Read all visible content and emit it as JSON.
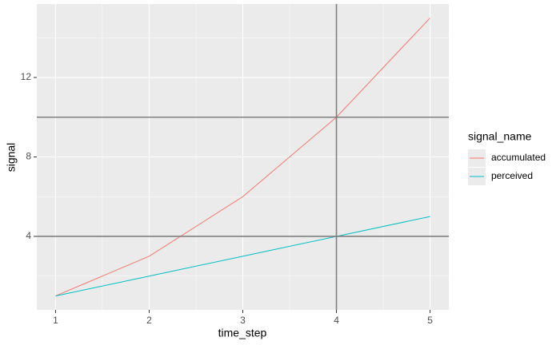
{
  "chart_data": {
    "type": "line",
    "x_label": "time_step",
    "y_label": "signal",
    "legend_title": "signal_name",
    "x": [
      1,
      2,
      3,
      4,
      5
    ],
    "series": [
      {
        "name": "accumulated",
        "color": "#F8766D",
        "values": [
          1,
          3,
          6,
          10,
          15
        ]
      },
      {
        "name": "perceived",
        "color": "#00BFC4",
        "values": [
          1,
          2,
          3,
          4,
          5
        ]
      }
    ],
    "xlim": [
      0.8,
      5.2
    ],
    "ylim": [
      0.3,
      15.7
    ],
    "xticks": [
      1,
      2,
      3,
      4,
      5
    ],
    "yticks": [
      4,
      8,
      12
    ],
    "minor_xticks": [
      1.5,
      2.5,
      3.5,
      4.5
    ],
    "minor_yticks": [
      2,
      6,
      10,
      14
    ],
    "hlines": [
      10,
      4
    ],
    "vlines": [
      4
    ],
    "reference_line_color": "#7f7f7f",
    "grid": true,
    "legend_position": "right"
  }
}
